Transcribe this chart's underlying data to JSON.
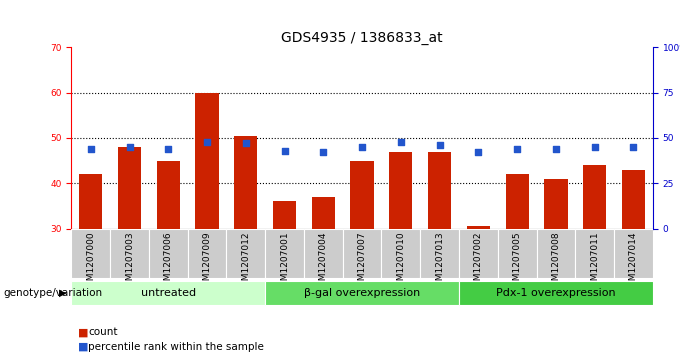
{
  "title": "GDS4935 / 1386833_at",
  "samples": [
    "GSM1207000",
    "GSM1207003",
    "GSM1207006",
    "GSM1207009",
    "GSM1207012",
    "GSM1207001",
    "GSM1207004",
    "GSM1207007",
    "GSM1207010",
    "GSM1207013",
    "GSM1207002",
    "GSM1207005",
    "GSM1207008",
    "GSM1207011",
    "GSM1207014"
  ],
  "counts": [
    42,
    48,
    45,
    60,
    50.5,
    36,
    37,
    45,
    47,
    47,
    30.5,
    42,
    41,
    44,
    43
  ],
  "percentiles": [
    44,
    45,
    44,
    48,
    47,
    43,
    42,
    45,
    48,
    46,
    42,
    44,
    44,
    45,
    45
  ],
  "groups": [
    {
      "label": "untreated",
      "start": 0,
      "end": 5
    },
    {
      "label": "β-gal overexpression",
      "start": 5,
      "end": 10
    },
    {
      "label": "Pdx-1 overexpression",
      "start": 10,
      "end": 15
    }
  ],
  "ylim_left": [
    30,
    70
  ],
  "ylim_right": [
    0,
    100
  ],
  "yticks_left": [
    30,
    40,
    50,
    60,
    70
  ],
  "yticks_right": [
    0,
    25,
    50,
    75,
    100
  ],
  "bar_color": "#cc2200",
  "dot_color": "#2255cc",
  "group_color_untreated": "#ccffcc",
  "group_color_bgal": "#66dd66",
  "group_color_pdx1": "#44cc44",
  "tick_bg_color": "#cccccc",
  "plot_bg": "#ffffff",
  "legend_count_label": "count",
  "legend_pct_label": "percentile rank within the sample",
  "genotype_label": "genotype/variation",
  "title_fontsize": 10,
  "tick_fontsize": 6.5,
  "label_fontsize": 7.5,
  "group_fontsize": 8
}
